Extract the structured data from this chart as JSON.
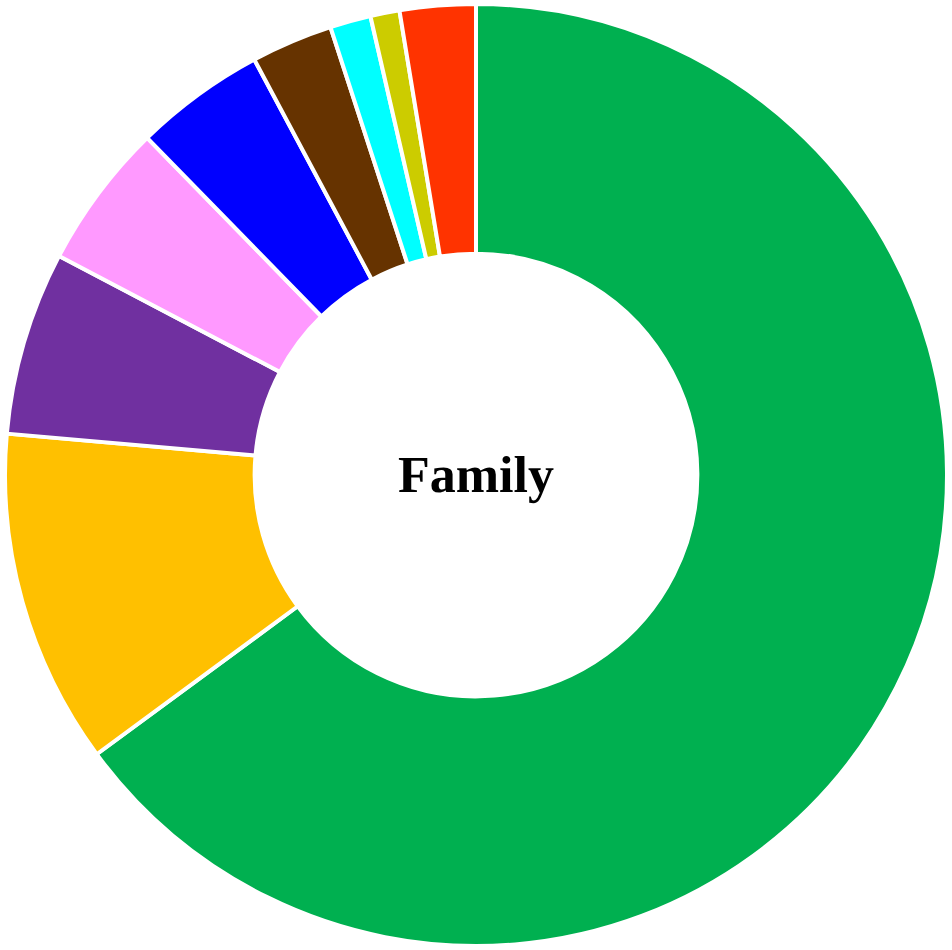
{
  "chart_data": {
    "type": "donut",
    "title": "Family",
    "categories": [
      null,
      null,
      null,
      null,
      null,
      null,
      null,
      null,
      null
    ],
    "values": [
      64.9,
      11.5,
      6.3,
      5.0,
      4.5,
      2.8,
      1.4,
      1.0,
      2.6
    ],
    "colors": [
      "#00b050",
      "#ffc000",
      "#7030a0",
      "#ff99ff",
      "#0000ff",
      "#663300",
      "#00ffff",
      "#cccc00",
      "#ff3300"
    ],
    "legend": false
  }
}
